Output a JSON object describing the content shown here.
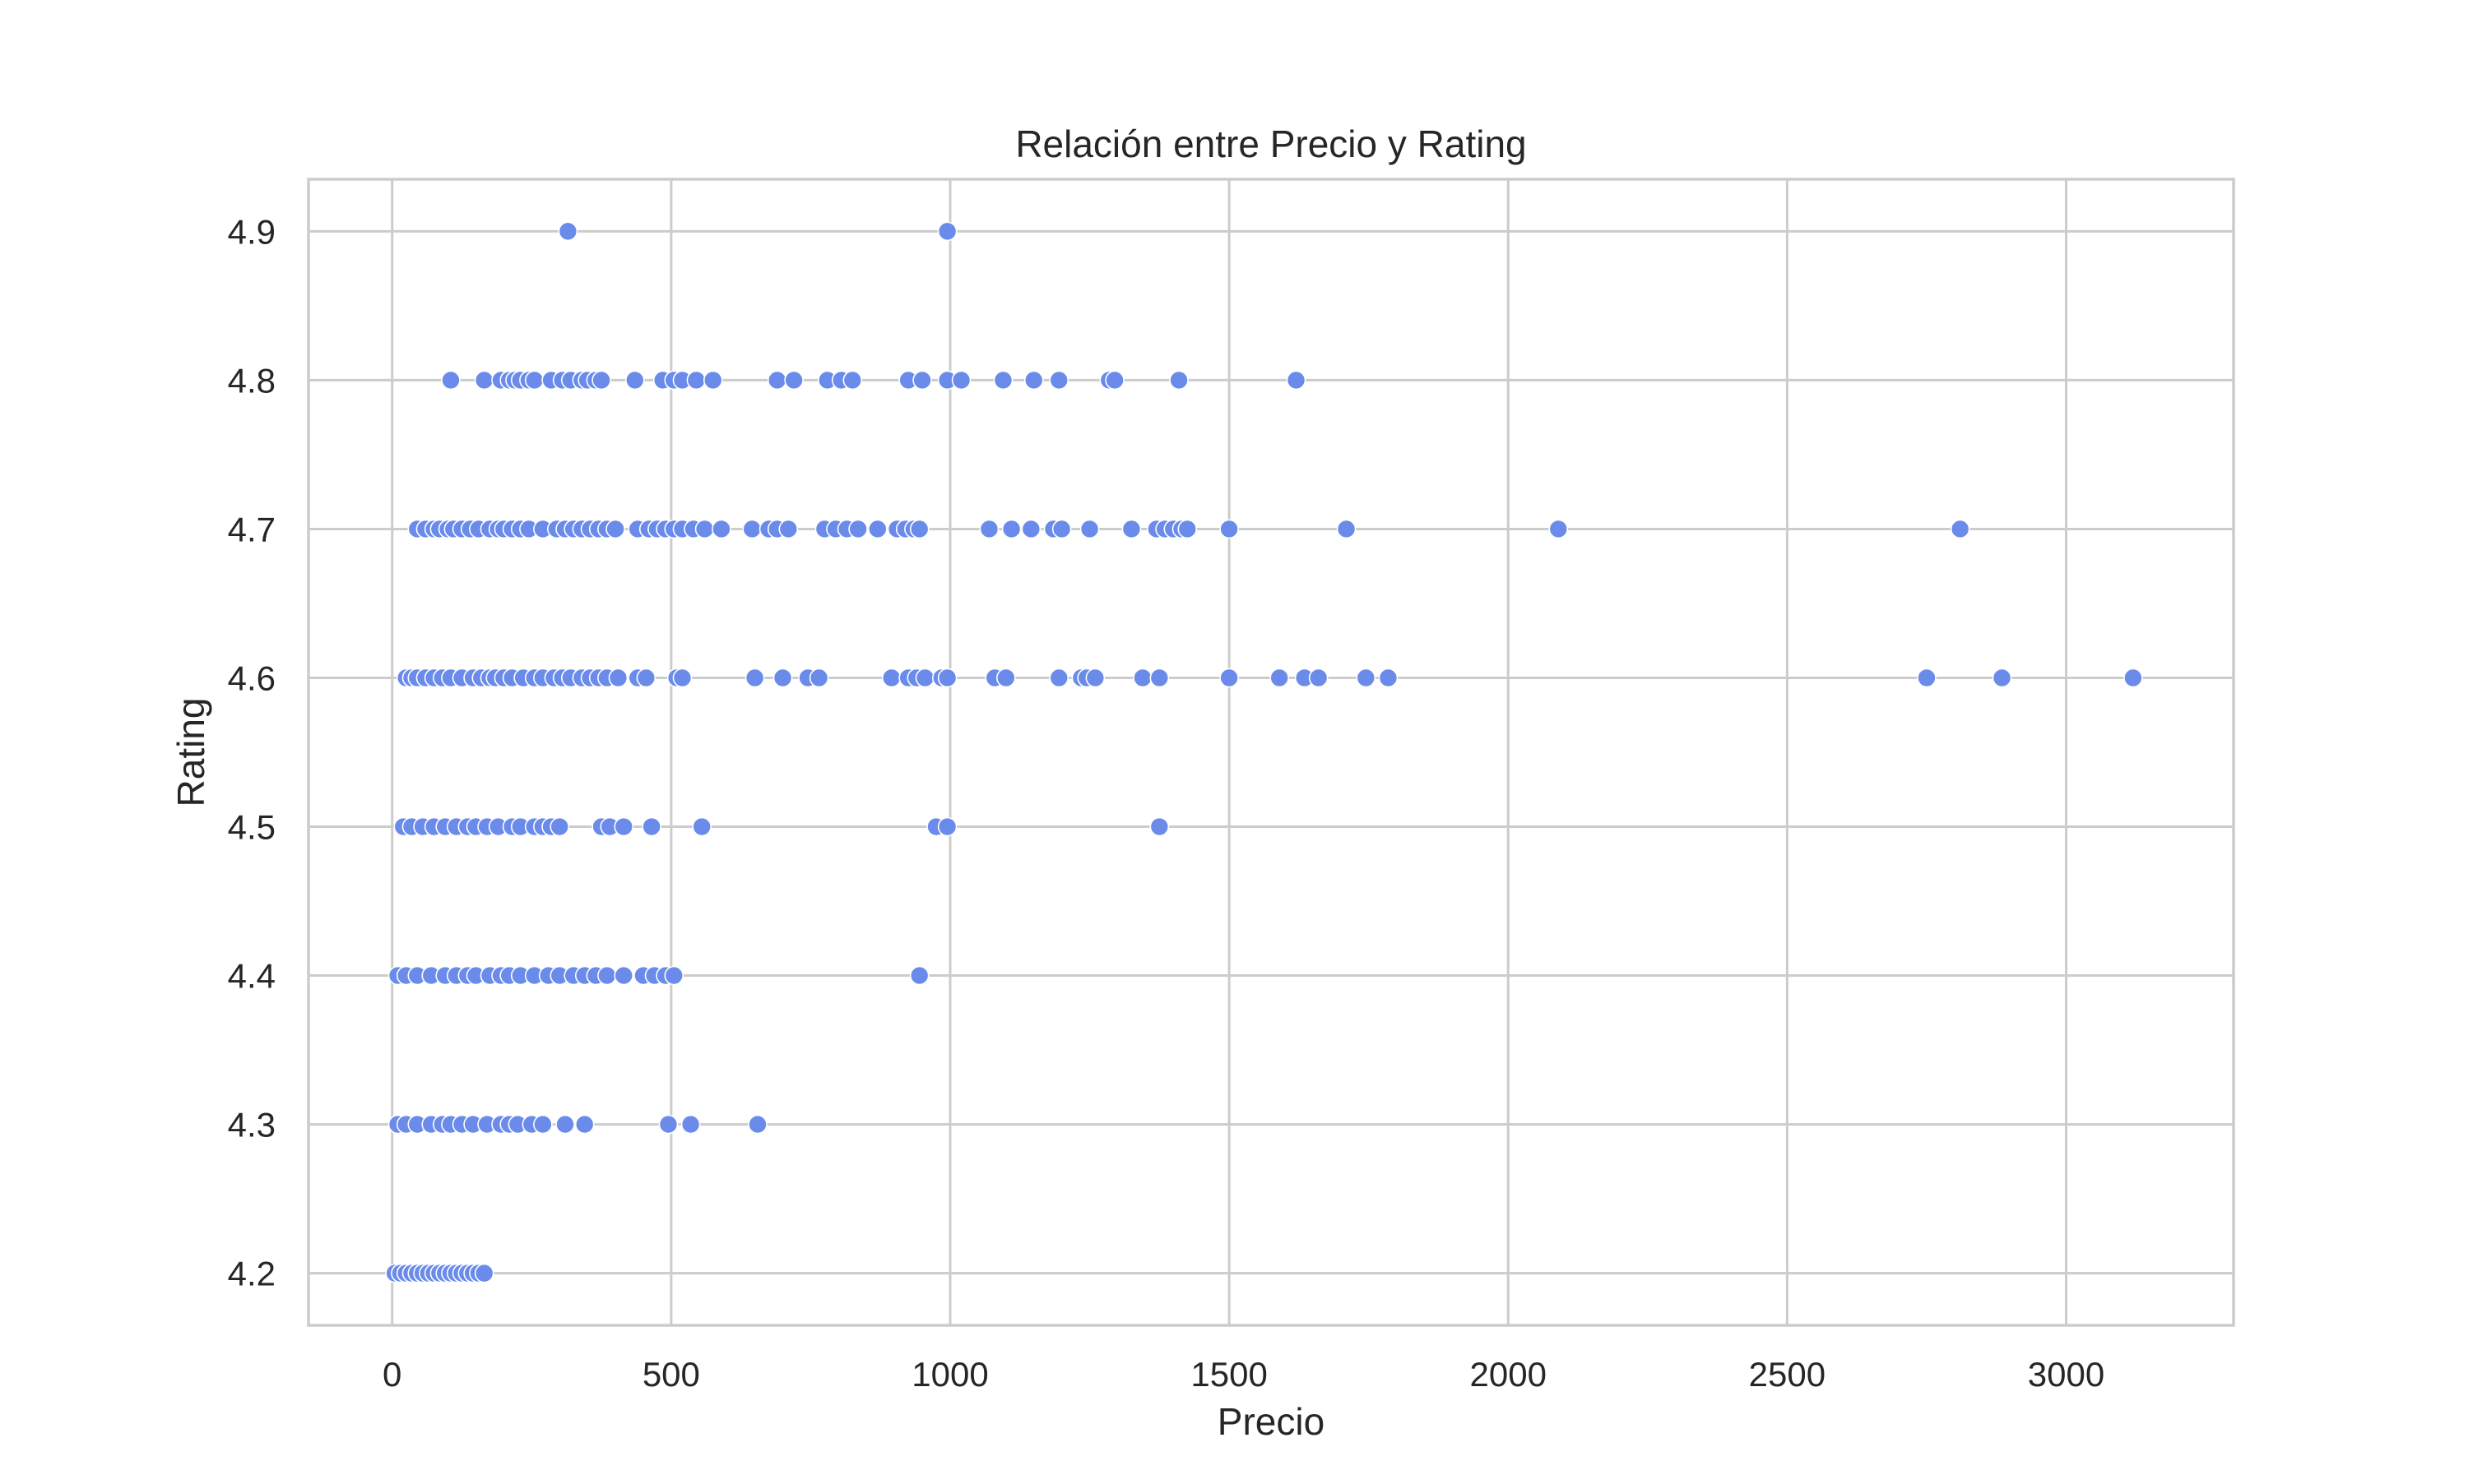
{
  "chart_data": {
    "type": "scatter",
    "title": "Relación entre Precio y Rating",
    "xlabel": "Precio",
    "ylabel": "Rating",
    "xlim": [
      -150,
      3300
    ],
    "ylim": [
      4.165,
      4.935
    ],
    "xticks": [
      0,
      500,
      1000,
      1500,
      2000,
      2500,
      3000
    ],
    "yticks": [
      4.2,
      4.3,
      4.4,
      4.5,
      4.6,
      4.7,
      4.8,
      4.9
    ],
    "x_tick_labels": [
      "0",
      "500",
      "1000",
      "1500",
      "2000",
      "2500",
      "3000"
    ],
    "y_tick_labels": [
      "4.2",
      "4.3",
      "4.4",
      "4.5",
      "4.6",
      "4.7",
      "4.8",
      "4.9"
    ],
    "grid": true,
    "legend": "none",
    "marker_color": "#6a8bea",
    "points": {
      "4.9": [
        315,
        995
      ],
      "4.8": [
        105,
        165,
        195,
        210,
        220,
        230,
        245,
        255,
        285,
        305,
        320,
        340,
        350,
        365,
        375,
        435,
        485,
        505,
        520,
        545,
        575,
        690,
        720,
        780,
        805,
        825,
        925,
        950,
        995,
        1020,
        1095,
        1150,
        1195,
        1285,
        1295,
        1410,
        1620
      ],
      "4.7": [
        45,
        60,
        75,
        85,
        100,
        110,
        125,
        140,
        155,
        175,
        190,
        200,
        215,
        230,
        245,
        270,
        295,
        310,
        325,
        340,
        355,
        370,
        385,
        400,
        440,
        460,
        475,
        490,
        505,
        520,
        540,
        560,
        590,
        645,
        675,
        690,
        710,
        775,
        795,
        815,
        835,
        870,
        905,
        920,
        935,
        945,
        1070,
        1110,
        1145,
        1185,
        1200,
        1250,
        1325,
        1370,
        1385,
        1400,
        1415,
        1425,
        1500,
        1710,
        2090,
        2810
      ],
      "4.6": [
        25,
        35,
        45,
        60,
        75,
        90,
        105,
        125,
        145,
        160,
        175,
        185,
        200,
        215,
        235,
        255,
        270,
        290,
        305,
        320,
        340,
        355,
        370,
        385,
        405,
        440,
        455,
        510,
        520,
        650,
        700,
        745,
        765,
        895,
        925,
        940,
        955,
        985,
        995,
        1080,
        1100,
        1195,
        1235,
        1245,
        1260,
        1345,
        1375,
        1500,
        1590,
        1635,
        1660,
        1745,
        1785,
        2750,
        2885,
        3120
      ],
      "4.5": [
        20,
        35,
        55,
        75,
        95,
        115,
        135,
        150,
        170,
        190,
        215,
        230,
        255,
        270,
        285,
        300,
        375,
        390,
        415,
        465,
        555,
        975,
        995,
        1375
      ],
      "4.4": [
        10,
        25,
        45,
        70,
        95,
        115,
        135,
        150,
        175,
        195,
        210,
        230,
        255,
        280,
        300,
        325,
        345,
        365,
        385,
        415,
        450,
        470,
        490,
        505,
        945
      ],
      "4.3": [
        10,
        25,
        45,
        70,
        90,
        105,
        125,
        145,
        170,
        195,
        210,
        225,
        250,
        270,
        310,
        345,
        495,
        535,
        655
      ],
      "4.2": [
        5,
        15,
        25,
        35,
        45,
        55,
        65,
        75,
        85,
        95,
        105,
        115,
        125,
        135,
        145,
        155,
        165
      ]
    }
  }
}
